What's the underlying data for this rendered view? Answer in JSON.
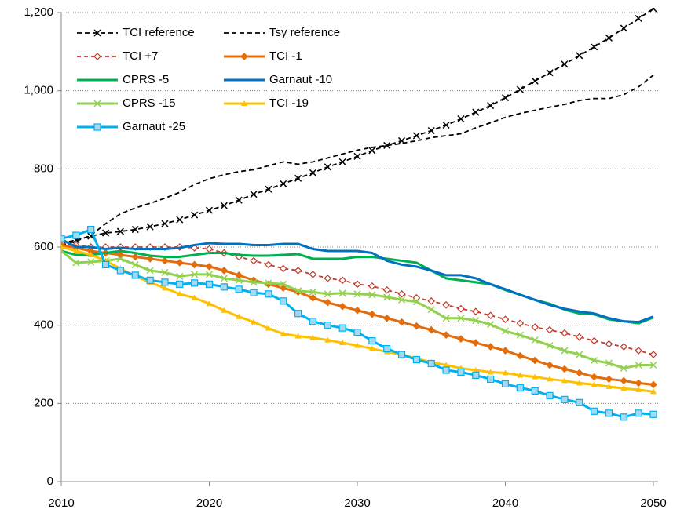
{
  "chart_data": {
    "type": "line",
    "x": [
      2010,
      2011,
      2012,
      2013,
      2014,
      2015,
      2016,
      2017,
      2018,
      2019,
      2020,
      2021,
      2022,
      2023,
      2024,
      2025,
      2026,
      2027,
      2028,
      2029,
      2030,
      2031,
      2032,
      2033,
      2034,
      2035,
      2036,
      2037,
      2038,
      2039,
      2040,
      2041,
      2042,
      2043,
      2044,
      2045,
      2046,
      2047,
      2048,
      2049,
      2050
    ],
    "xlim": [
      2010,
      2050
    ],
    "xticks": [
      2010,
      2020,
      2030,
      2040,
      2050
    ],
    "ylim": [
      0,
      1200
    ],
    "yticks": [
      0,
      200,
      400,
      600,
      800,
      {
        "value": 1000,
        "label": "1,000"
      },
      {
        "value": 1200,
        "label": "1,200"
      }
    ],
    "grid": true,
    "legend": "upper-left",
    "series": [
      {
        "name": "TCI reference",
        "color": "#000000",
        "dash": "6 4",
        "marker": "x",
        "values": [
          610,
          618,
          628,
          636,
          640,
          645,
          652,
          660,
          670,
          682,
          694,
          706,
          720,
          735,
          748,
          762,
          776,
          790,
          805,
          818,
          832,
          847,
          860,
          872,
          885,
          898,
          912,
          928,
          945,
          962,
          982,
          1003,
          1025,
          1046,
          1068,
          1090,
          1112,
          1135,
          1160,
          1185,
          1210
        ]
      },
      {
        "name": "Tsy reference",
        "color": "#000000",
        "dash": "6 4",
        "marker": "none",
        "values": [
          605,
          615,
          630,
          660,
          685,
          700,
          712,
          725,
          740,
          760,
          775,
          785,
          793,
          798,
          808,
          818,
          812,
          818,
          828,
          838,
          848,
          855,
          860,
          865,
          872,
          880,
          885,
          890,
          905,
          918,
          932,
          942,
          950,
          958,
          965,
          975,
          980,
          980,
          990,
          1010,
          1040
        ]
      },
      {
        "name": "TCI +7",
        "color": "#c0392b",
        "dash": "5 4",
        "marker": "diamond-open",
        "values": [
          610,
          605,
          600,
          600,
          600,
          600,
          600,
          600,
          600,
          598,
          595,
          585,
          575,
          565,
          555,
          545,
          540,
          530,
          520,
          515,
          505,
          500,
          490,
          480,
          470,
          462,
          452,
          442,
          435,
          425,
          415,
          405,
          395,
          388,
          380,
          370,
          360,
          352,
          345,
          335,
          325
        ]
      },
      {
        "name": "TCI -1",
        "color": "#e46c0a",
        "dash": "none",
        "marker": "diamond",
        "values": [
          605,
          598,
          590,
          585,
          580,
          575,
          570,
          565,
          560,
          555,
          550,
          540,
          528,
          515,
          505,
          495,
          485,
          470,
          458,
          448,
          438,
          428,
          418,
          408,
          398,
          388,
          375,
          365,
          355,
          345,
          335,
          322,
          310,
          298,
          288,
          278,
          268,
          262,
          258,
          252,
          248
        ]
      },
      {
        "name": "CPRS -5",
        "color": "#00b050",
        "dash": "none",
        "marker": "none",
        "values": [
          590,
          580,
          580,
          585,
          590,
          585,
          578,
          575,
          575,
          580,
          585,
          585,
          580,
          578,
          578,
          580,
          582,
          570,
          570,
          570,
          575,
          575,
          570,
          565,
          560,
          540,
          520,
          515,
          510,
          505,
          490,
          478,
          465,
          455,
          440,
          430,
          428,
          415,
          410,
          405,
          420
        ]
      },
      {
        "name": "Garnaut -10",
        "color": "#0070c0",
        "dash": "none",
        "marker": "none",
        "values": [
          620,
          600,
          600,
          595,
          598,
          595,
          595,
          595,
          598,
          605,
          610,
          608,
          608,
          605,
          605,
          608,
          608,
          595,
          590,
          590,
          590,
          585,
          565,
          555,
          550,
          540,
          528,
          528,
          520,
          505,
          492,
          478,
          465,
          452,
          442,
          435,
          430,
          418,
          410,
          408,
          422
        ]
      },
      {
        "name": "CPRS -15",
        "color": "#92d050",
        "dash": "none",
        "marker": "x",
        "values": [
          590,
          560,
          562,
          565,
          570,
          555,
          540,
          535,
          525,
          530,
          530,
          520,
          515,
          510,
          508,
          505,
          488,
          485,
          480,
          482,
          480,
          478,
          472,
          465,
          460,
          440,
          418,
          418,
          412,
          402,
          385,
          375,
          362,
          348,
          335,
          325,
          310,
          303,
          290,
          298,
          298
        ]
      },
      {
        "name": "TCI -19",
        "color": "#ffc000",
        "dash": "none",
        "marker": "triangle",
        "values": [
          600,
          590,
          580,
          565,
          545,
          525,
          510,
          495,
          480,
          470,
          455,
          438,
          422,
          408,
          392,
          378,
          372,
          368,
          362,
          355,
          348,
          340,
          332,
          325,
          315,
          305,
          298,
          290,
          285,
          280,
          278,
          272,
          268,
          262,
          258,
          252,
          248,
          243,
          238,
          235,
          230
        ]
      },
      {
        "name": "Garnaut -25",
        "color": "#00b0f0",
        "dash": "none",
        "marker": "square",
        "values": [
          622,
          630,
          645,
          555,
          540,
          528,
          515,
          510,
          505,
          508,
          505,
          498,
          492,
          483,
          480,
          462,
          430,
          410,
          400,
          393,
          382,
          360,
          340,
          325,
          312,
          302,
          285,
          280,
          272,
          262,
          250,
          240,
          232,
          220,
          210,
          202,
          180,
          175,
          165,
          175,
          172
        ]
      }
    ]
  }
}
